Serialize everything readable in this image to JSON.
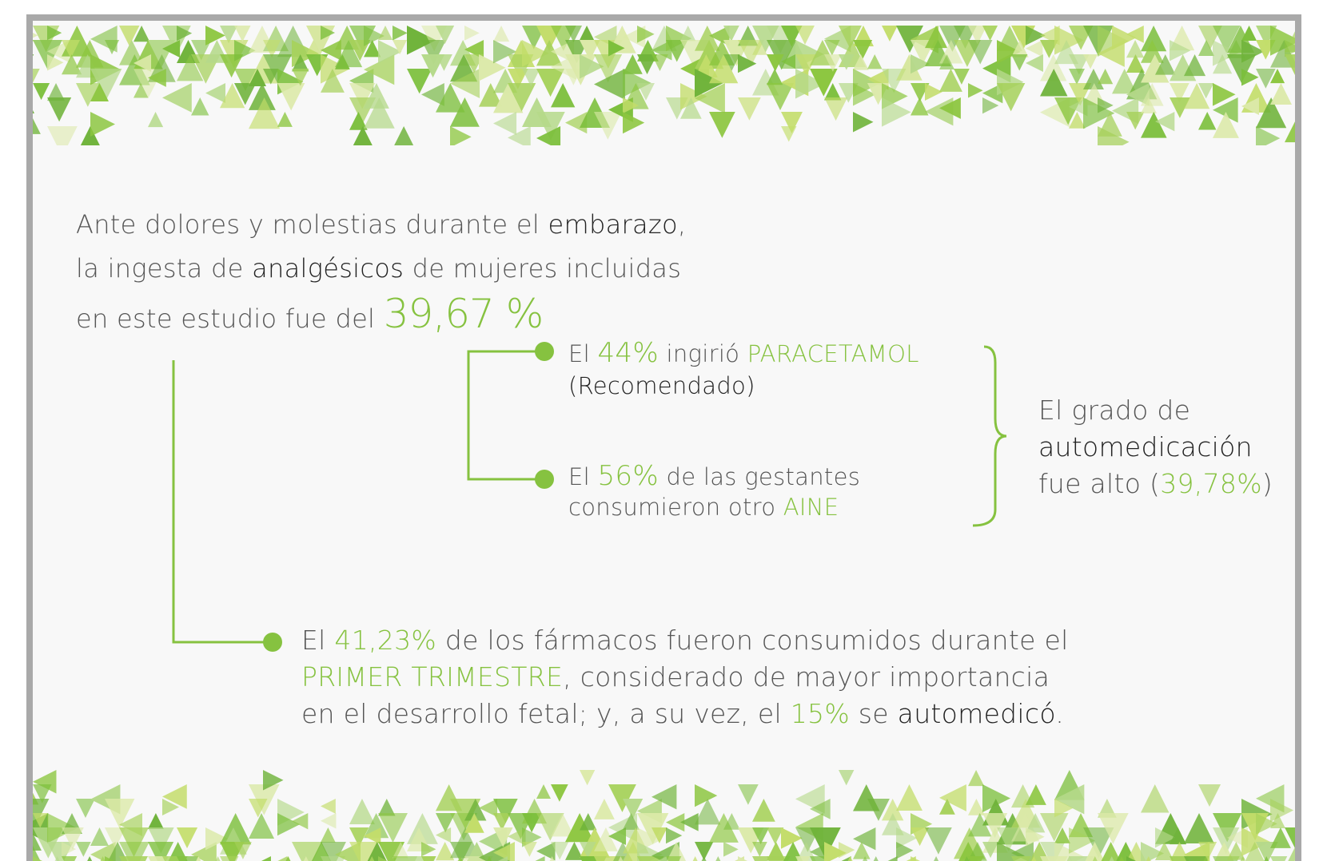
{
  "intro": {
    "lines": [
      [
        "Ante dolores y molestias durante el ",
        "embarazo",
        ","
      ],
      [
        "la ingesta de ",
        "analgésicos",
        " de mujeres incluidas"
      ],
      [
        "en este estudio fue del ",
        "39,67 %"
      ]
    ]
  },
  "branches": [
    {
      "lines": [
        [
          "El ",
          "44%",
          " ingirió ",
          "PARACETAMOL"
        ],
        [
          "(Recomendado)"
        ]
      ]
    },
    {
      "lines": [
        [
          "El ",
          "56%",
          " de las gestantes"
        ],
        [
          "consumieron otro ",
          "AINE"
        ]
      ]
    }
  ],
  "conclusion": {
    "lines": [
      [
        "El grado de"
      ],
      [
        "automedicación"
      ],
      [
        "fue alto (",
        "39,78%",
        ")"
      ]
    ]
  },
  "footnote": {
    "lines": [
      [
        "El ",
        "41,23%",
        " de los fármacos fueron consumidos durante el"
      ],
      [
        "PRIMER TRIMESTRE",
        ", considerado de mayor importancia"
      ],
      [
        "en el desarrollo fetal; y, a su vez, el ",
        "15%",
        " se ",
        "automedicó",
        "."
      ]
    ]
  }
}
